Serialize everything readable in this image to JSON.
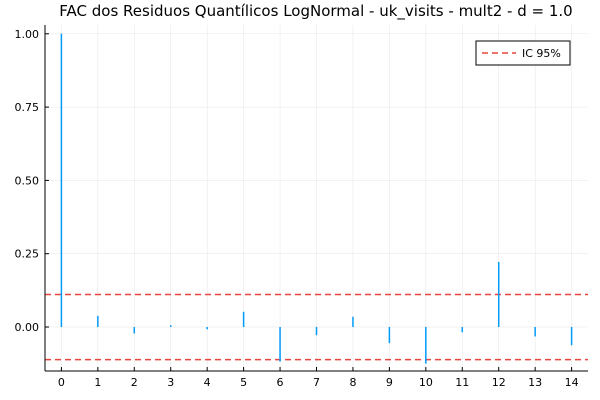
{
  "chart_data": {
    "type": "bar",
    "title": "FAC dos Residuos Quantílicos LogNormal - uk_visits - mult2 - d = 1.0",
    "xlabel": "",
    "ylabel": "",
    "x": [
      0,
      1,
      2,
      3,
      4,
      5,
      6,
      7,
      8,
      9,
      10,
      11,
      12,
      13,
      14
    ],
    "values": [
      1.0,
      0.038,
      -0.022,
      0.006,
      -0.008,
      0.052,
      -0.118,
      -0.028,
      0.035,
      -0.055,
      -0.125,
      -0.018,
      0.222,
      -0.032,
      -0.062
    ],
    "xticks": [
      "0",
      "1",
      "2",
      "3",
      "4",
      "5",
      "6",
      "7",
      "8",
      "9",
      "10",
      "11",
      "12",
      "13",
      "14"
    ],
    "yticks": [
      "0.00",
      "0.25",
      "0.50",
      "0.75",
      "1.00"
    ],
    "ylim": [
      -0.15,
      1.03
    ],
    "xlim": [
      -0.45,
      14.45
    ],
    "confidence_interval": {
      "label": "IC 95%",
      "upper": 0.111,
      "lower": -0.111,
      "color": "#e26f46"
    },
    "bar_color": "#009af9",
    "grid": true,
    "legend_position": "top-right"
  }
}
